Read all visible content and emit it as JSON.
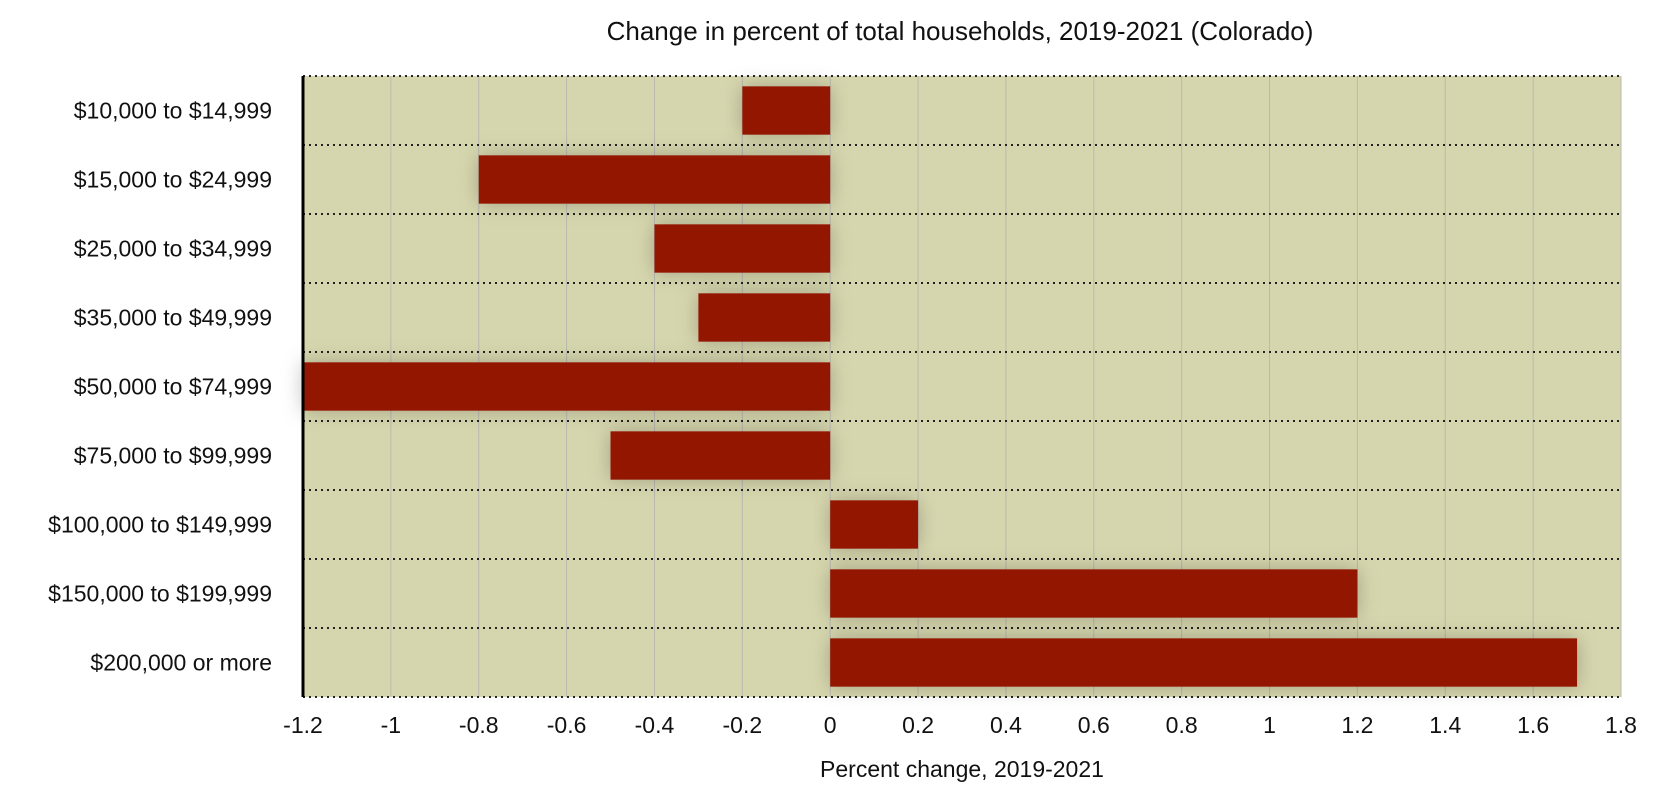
{
  "chart_data": {
    "type": "bar",
    "orientation": "horizontal",
    "title": "Change in percent of total households, 2019-2021 (Colorado)",
    "xlabel": "Percent change, 2019-2021",
    "ylabel": "",
    "categories": [
      "$10,000 to $14,999",
      "$15,000 to $24,999",
      "$25,000 to $34,999",
      "$35,000 to $49,999",
      "$50,000 to $74,999",
      "$75,000 to $99,999",
      "$100,000 to $149,999",
      "$150,000 to $199,999",
      "$200,000 or more"
    ],
    "values": [
      -0.2,
      -0.8,
      -0.4,
      -0.3,
      -1.2,
      -0.5,
      0.2,
      1.2,
      1.7
    ],
    "xlim": [
      -1.2,
      1.8
    ],
    "xticks": [
      -1.2,
      -1,
      -0.8,
      -0.6,
      -0.4,
      -0.2,
      0,
      0.2,
      0.4,
      0.6,
      0.8,
      1,
      1.2,
      1.4,
      1.6,
      1.8
    ],
    "xtick_labels": [
      "-1.2",
      "-1",
      "-0.8",
      "-0.6",
      "-0.4",
      "-0.2",
      "0",
      "0.2",
      "0.4",
      "0.6",
      "0.8",
      "1",
      "1.2",
      "1.4",
      "1.6",
      "1.8"
    ],
    "grid": true,
    "legend": "none",
    "colors": {
      "bar": "#921200",
      "plot_background": "#d6d6ae",
      "vertical_grid": "#b9b9b0",
      "row_separator": "#222222"
    }
  }
}
